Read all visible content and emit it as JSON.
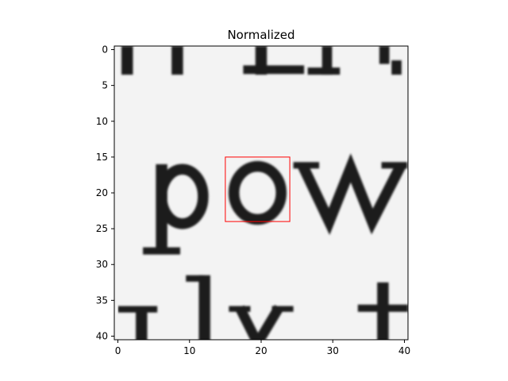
{
  "chart_data": {
    "type": "heatmap",
    "title": "Normalized",
    "colormap": "gray",
    "xlim": [
      -0.5,
      40.5
    ],
    "ylim": [
      40.5,
      -0.5
    ],
    "x_ticks": [
      0,
      10,
      20,
      30,
      40
    ],
    "y_ticks": [
      0,
      5,
      10,
      15,
      20,
      25,
      30,
      35,
      40
    ],
    "grid": false,
    "highlight_box": {
      "x0": 15,
      "y0": 15,
      "x1": 24,
      "y1": 24,
      "color": "#ff0000"
    },
    "glyphs": [
      {
        "char": "p",
        "x": 9,
        "y": 21.5
      },
      {
        "char": "o",
        "x": 20,
        "y": 20.5
      },
      {
        "char": "w",
        "x": 32.5,
        "y": 20.5
      }
    ]
  }
}
